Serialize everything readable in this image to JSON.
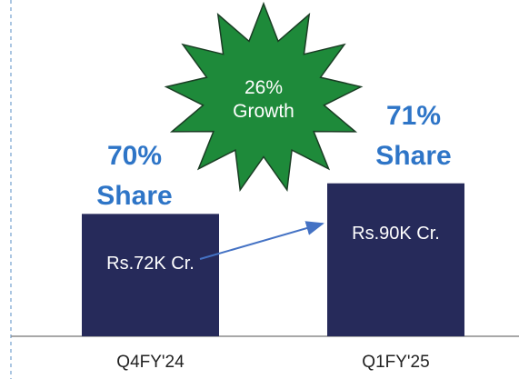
{
  "chart_data": {
    "type": "bar",
    "categories": [
      "Q4FY'24",
      "Q1FY'25"
    ],
    "values": [
      72,
      90
    ],
    "value_labels": [
      "Rs.72K Cr.",
      "Rs.90K Cr."
    ],
    "color": "#262a5a",
    "annotations": [
      "70% Share",
      "71% Share",
      "26% Growth"
    ]
  }
}
